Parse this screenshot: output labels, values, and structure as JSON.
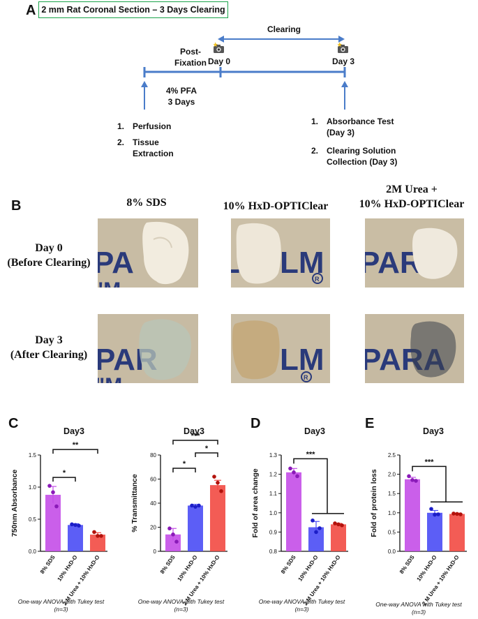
{
  "panelA": {
    "letter": "A",
    "title": "2 mm Rat Coronal Section – 3 Days Clearing",
    "clearing": "Clearing",
    "post_fixation": "Post-\nFixation",
    "day0": "Day 0",
    "day3": "Day 3",
    "pfa": "4% PFA\n3 Days",
    "left_steps": [
      "1.",
      "Perfusion",
      "2.",
      "Tissue\nExtraction"
    ],
    "right_steps": [
      "1.",
      "Absorbance Test\n(Day 3)",
      "2.",
      "Clearing Solution\nCollection (Day 3)"
    ]
  },
  "panelB": {
    "letter": "B",
    "col_headers": [
      "8% SDS",
      "10% HxD-OPTIClear",
      "2M Urea +\n10% HxD-OPTIClear"
    ],
    "row_headers": [
      "Day 0\n(Before Clearing)",
      "Day 3\n(After Clearing)"
    ],
    "photo_text": "PARAFILM",
    "photo_alts": [
      "Day 0 8% SDS brain section",
      "Day 0 10% HxD-OPTIClear brain section",
      "Day 0 2M Urea brain section",
      "Day 3 8% SDS brain section",
      "Day 3 10% HxD-OPTIClear brain section",
      "Day 3 2M Urea brain section"
    ]
  },
  "panelC": {
    "letter": "C"
  },
  "panelD": {
    "letter": "D"
  },
  "panelE": {
    "letter": "E"
  },
  "colors": {
    "purple": "#c44ee8",
    "blue": "#4a4cf5",
    "red": "#f24a43",
    "green_border": "#1aa34a",
    "timeline": "#4a7cc9"
  },
  "chart_data": [
    {
      "type": "bar",
      "title": "Day3",
      "categories": [
        "8% SDS",
        "10% HxD-O",
        "2 M Urea + 10% HxD-O"
      ],
      "values": [
        0.88,
        0.41,
        0.26
      ],
      "errors": [
        0.13,
        0.02,
        0.03
      ],
      "points": [
        [
          1.02,
          0.92,
          0.7
        ],
        [
          0.42,
          0.41,
          0.4
        ],
        [
          0.3,
          0.24,
          0.24
        ]
      ],
      "ylabel": "750nm Absorbance",
      "ylim": [
        0,
        1.5
      ],
      "yticks": [
        "0.0",
        "0.5",
        "1.0",
        "1.5"
      ],
      "significance": [
        {
          "from": 0,
          "to": 1,
          "label": "*"
        },
        {
          "from": 0,
          "to": 2,
          "label": "**"
        }
      ],
      "caption": "One-way ANOVA with Tukey test\n(n=3)"
    },
    {
      "type": "bar",
      "title": "Day3",
      "categories": [
        "8% SDS",
        "10% HxD-O",
        "2 M Urea + 10% HxD-O"
      ],
      "values": [
        14,
        38,
        55
      ],
      "errors": [
        5,
        1,
        4
      ],
      "points": [
        [
          19,
          14,
          8
        ],
        [
          38,
          37,
          38
        ],
        [
          62,
          57,
          50
        ]
      ],
      "ylabel": "% Transmittance",
      "ylim": [
        0,
        80
      ],
      "yticks": [
        "0",
        "20",
        "40",
        "60",
        "80"
      ],
      "significance": [
        {
          "from": 0,
          "to": 1,
          "label": "*"
        },
        {
          "from": 1,
          "to": 2,
          "label": "*"
        },
        {
          "from": 0,
          "to": 2,
          "label": "***"
        }
      ],
      "caption": "One-way ANOVA with Tukey test\n(n=3)"
    },
    {
      "type": "bar",
      "title": "Day3",
      "categories": [
        "8% SDS",
        "10% HxD-O",
        "2 M Urea + 10% HxD-O"
      ],
      "values": [
        1.21,
        0.925,
        0.94
      ],
      "errors": [
        0.02,
        0.03,
        0.005
      ],
      "points": [
        [
          1.23,
          1.21,
          1.19
        ],
        [
          0.96,
          0.9,
          0.92
        ],
        [
          0.945,
          0.94,
          0.935
        ]
      ],
      "ylabel": "Fold of area change",
      "ylim": [
        0.8,
        1.3
      ],
      "yticks": [
        "0.8",
        "0.9",
        "1.0",
        "1.1",
        "1.2",
        "1.3"
      ],
      "significance": [
        {
          "from": 0,
          "to": [
            1,
            2
          ],
          "label": "***"
        }
      ],
      "caption": "One-way ANOVA with Tukey test\n(n=3)"
    },
    {
      "type": "bar",
      "title": "Day3",
      "categories": [
        "8% SDS",
        "10% HxD-O",
        "2 M Urea + 10% HxD-O"
      ],
      "values": [
        1.87,
        1.0,
        0.97
      ],
      "errors": [
        0.05,
        0.06,
        0.02
      ],
      "points": [
        [
          1.95,
          1.85,
          1.83
        ],
        [
          1.1,
          0.95,
          0.96
        ],
        [
          0.98,
          0.97,
          0.96
        ]
      ],
      "ylabel": "Fold of protein loss",
      "ylim": [
        0,
        2.5
      ],
      "yticks": [
        "0.0",
        "0.5",
        "1.0",
        "1.5",
        "2.0",
        "2.5"
      ],
      "significance": [
        {
          "from": 0,
          "to": [
            1,
            2
          ],
          "label": "***"
        }
      ],
      "caption": "One-way ANOVA with Tukey test\n(n=3)"
    }
  ]
}
